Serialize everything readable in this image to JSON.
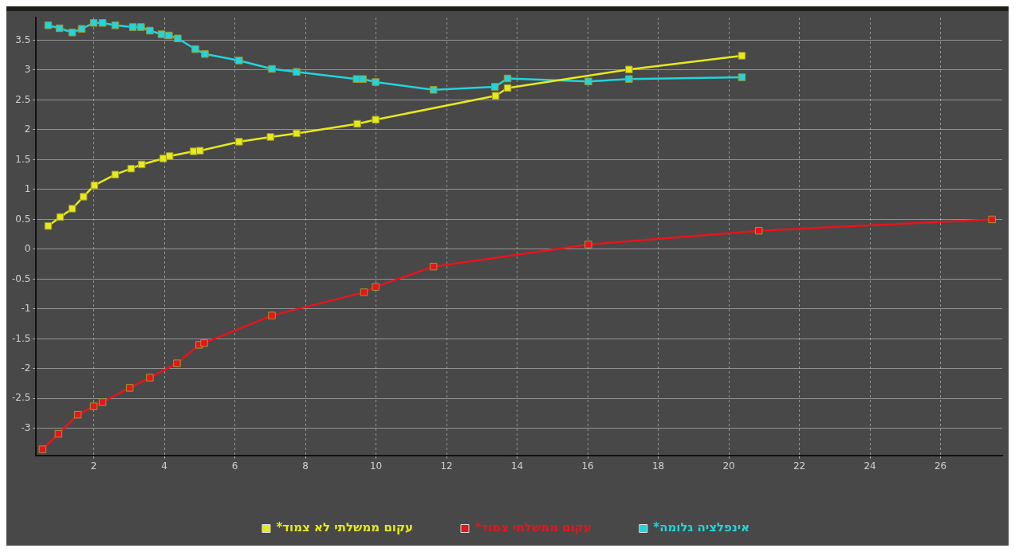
{
  "chart_data": {
    "type": "line",
    "series": [
      {
        "name": "*עקום ממשלתי לא צמוד",
        "color": "#e8e81c",
        "x": [
          0.71,
          1.05,
          1.39,
          1.71,
          2.02,
          2.61,
          3.06,
          3.36,
          3.97,
          4.15,
          4.83,
          5.01,
          6.12,
          7.01,
          7.75,
          9.47,
          9.99,
          13.39,
          13.73,
          17.17,
          20.37
        ],
        "values": [
          0.39,
          0.54,
          0.68,
          0.88,
          1.07,
          1.25,
          1.35,
          1.42,
          1.52,
          1.56,
          1.64,
          1.65,
          1.8,
          1.88,
          1.94,
          2.1,
          2.17,
          2.57,
          2.7,
          3.01,
          3.24
        ]
      },
      {
        "name": "*עקום ממשלתי צמוד",
        "color": "#e8141c",
        "x": [
          0.55,
          1.0,
          1.55,
          2.0,
          2.25,
          3.02,
          3.59,
          4.36,
          4.99,
          5.13,
          7.05,
          9.66,
          9.99,
          11.63,
          16.02,
          20.85,
          27.46
        ],
        "values": [
          -3.35,
          -3.09,
          -2.77,
          -2.63,
          -2.56,
          -2.32,
          -2.15,
          -1.91,
          -1.6,
          -1.57,
          -1.11,
          -0.72,
          -0.63,
          -0.29,
          0.08,
          0.31,
          0.5
        ]
      },
      {
        "name": "*אינפלציה גלומה",
        "color": "#22d4dc",
        "x": [
          0.71,
          1.03,
          1.39,
          1.66,
          2.0,
          2.25,
          2.61,
          3.11,
          3.34,
          3.59,
          3.92,
          4.13,
          4.38,
          4.88,
          5.15,
          6.12,
          7.05,
          7.75,
          9.45,
          9.63,
          9.99,
          11.63,
          13.37,
          13.73,
          16.02,
          17.17,
          20.37
        ],
        "values": [
          3.75,
          3.7,
          3.63,
          3.69,
          3.79,
          3.79,
          3.75,
          3.72,
          3.72,
          3.66,
          3.6,
          3.58,
          3.53,
          3.35,
          3.27,
          3.16,
          3.02,
          2.97,
          2.85,
          2.85,
          2.8,
          2.67,
          2.72,
          2.86,
          2.81,
          2.85,
          2.88
        ]
      }
    ],
    "xlim": [
      0.37,
      27.75
    ],
    "xticks": [
      2,
      4,
      6,
      8,
      10,
      12,
      14,
      16,
      18,
      20,
      22,
      24,
      26
    ],
    "ylim": [
      -3.45,
      3.88
    ],
    "yticks": [
      -3,
      -2.5,
      -2,
      -1.5,
      -1,
      -0.5,
      0,
      0.5,
      1,
      1.5,
      2,
      2.5,
      3,
      3.5
    ],
    "grid": true,
    "legend": "bottom",
    "marker": "square",
    "line_style": "solid"
  }
}
